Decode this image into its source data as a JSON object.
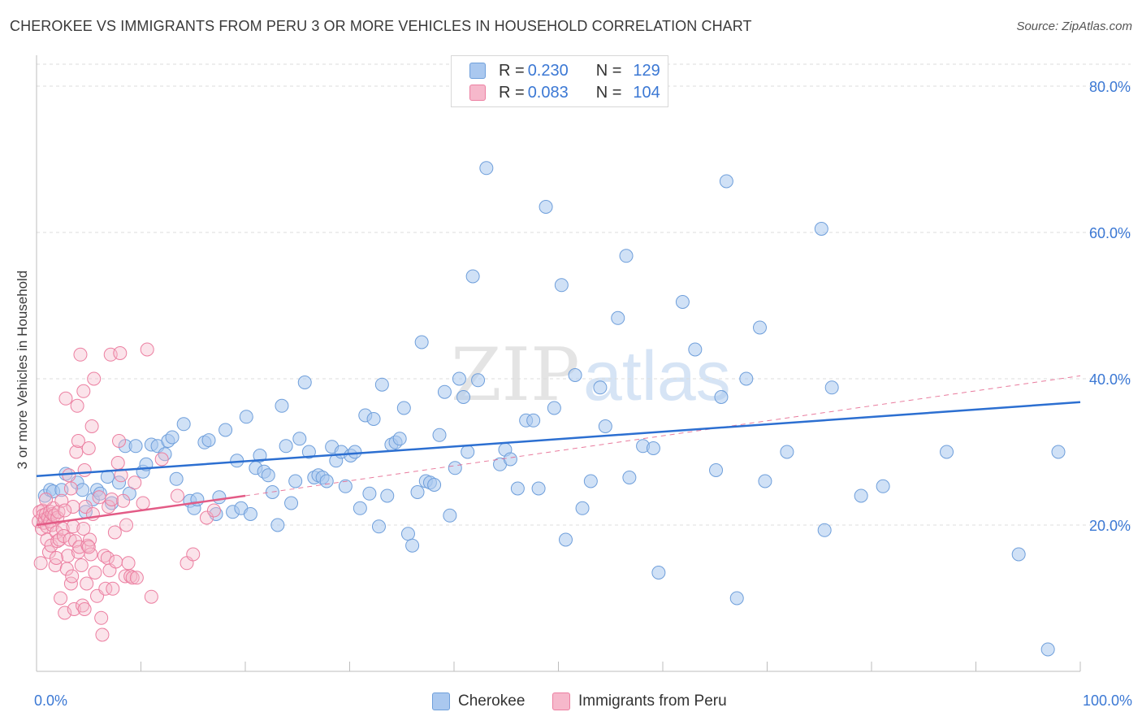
{
  "title": "CHEROKEE VS IMMIGRANTS FROM PERU 3 OR MORE VEHICLES IN HOUSEHOLD CORRELATION CHART",
  "source": "Source: ZipAtlas.com",
  "watermark": {
    "zip": "ZIP",
    "atlas": "atlas"
  },
  "legend_top": [
    {
      "r_label": "R = ",
      "r_value": "0.230",
      "n_label": "N = ",
      "n_value": "129"
    },
    {
      "r_label": "R = ",
      "r_value": "0.083",
      "n_label": "N = ",
      "n_value": "104"
    }
  ],
  "legend_bottom": [
    "Cherokee",
    "Immigrants from Peru"
  ],
  "colors": {
    "cherokee_fill": "#aac8ef",
    "cherokee_stroke": "#6f9fdb",
    "cherokee_line": "#2c6fd1",
    "peru_fill": "#f6b8cb",
    "peru_stroke": "#ec7fa1",
    "peru_line": "#e35b86",
    "tick_label": "#3b78d4",
    "grid": "#dcdcdc"
  },
  "chart_data": {
    "type": "scatter",
    "xlabel": "",
    "ylabel": "3 or more Vehicles in Household",
    "xlim": [
      0,
      100
    ],
    "ylim": [
      0,
      84
    ],
    "x_tick_labels": [
      "0.0%",
      "100.0%"
    ],
    "y_ticks": [
      20,
      40,
      60,
      80
    ],
    "y_tick_labels": [
      "20.0%",
      "40.0%",
      "60.0%",
      "80.0%"
    ],
    "grid": true,
    "legend_position": "top-center",
    "series": [
      {
        "name": "Cherokee",
        "r": 0.23,
        "n": 129,
        "trend": {
          "x": [
            0,
            100
          ],
          "y": [
            26.7,
            36.8
          ]
        },
        "points": [
          [
            0.8,
            24.0
          ],
          [
            1.3,
            24.8
          ],
          [
            1.6,
            24.6
          ],
          [
            2.4,
            24.8
          ],
          [
            2.8,
            27.0
          ],
          [
            3.9,
            25.8
          ],
          [
            4.4,
            24.8
          ],
          [
            4.7,
            21.8
          ],
          [
            5.4,
            23.5
          ],
          [
            5.8,
            24.8
          ],
          [
            6.1,
            24.3
          ],
          [
            6.8,
            26.6
          ],
          [
            7.2,
            23.0
          ],
          [
            7.9,
            25.8
          ],
          [
            8.5,
            30.8
          ],
          [
            8.9,
            24.3
          ],
          [
            9.5,
            30.8
          ],
          [
            10.2,
            27.3
          ],
          [
            10.5,
            28.3
          ],
          [
            11.0,
            31.0
          ],
          [
            11.6,
            30.8
          ],
          [
            12.3,
            29.7
          ],
          [
            12.6,
            31.5
          ],
          [
            13.0,
            32.0
          ],
          [
            13.4,
            26.3
          ],
          [
            14.1,
            33.8
          ],
          [
            14.7,
            23.3
          ],
          [
            15.1,
            22.3
          ],
          [
            15.4,
            23.5
          ],
          [
            16.1,
            31.3
          ],
          [
            16.5,
            31.6
          ],
          [
            17.2,
            21.5
          ],
          [
            17.5,
            23.8
          ],
          [
            18.1,
            33.0
          ],
          [
            18.8,
            21.8
          ],
          [
            19.2,
            28.8
          ],
          [
            19.6,
            22.3
          ],
          [
            20.1,
            34.8
          ],
          [
            20.5,
            21.5
          ],
          [
            21.0,
            27.8
          ],
          [
            21.4,
            29.5
          ],
          [
            21.8,
            27.3
          ],
          [
            22.2,
            26.8
          ],
          [
            22.6,
            24.5
          ],
          [
            23.1,
            20.0
          ],
          [
            23.5,
            36.3
          ],
          [
            23.9,
            30.8
          ],
          [
            24.4,
            23.0
          ],
          [
            24.8,
            26.0
          ],
          [
            25.2,
            31.8
          ],
          [
            25.7,
            39.5
          ],
          [
            26.1,
            30.0
          ],
          [
            26.6,
            26.5
          ],
          [
            27.0,
            26.8
          ],
          [
            27.4,
            26.5
          ],
          [
            27.8,
            26.0
          ],
          [
            28.3,
            30.7
          ],
          [
            28.7,
            28.8
          ],
          [
            29.2,
            30.0
          ],
          [
            29.6,
            25.3
          ],
          [
            30.1,
            29.5
          ],
          [
            30.5,
            30.0
          ],
          [
            31.0,
            22.3
          ],
          [
            31.5,
            35.0
          ],
          [
            31.9,
            24.3
          ],
          [
            32.3,
            34.5
          ],
          [
            32.8,
            19.8
          ],
          [
            33.1,
            39.2
          ],
          [
            33.6,
            24.0
          ],
          [
            34.0,
            31.0
          ],
          [
            34.4,
            31.3
          ],
          [
            34.8,
            31.8
          ],
          [
            35.2,
            36.0
          ],
          [
            35.6,
            18.8
          ],
          [
            36.0,
            17.2
          ],
          [
            36.5,
            24.5
          ],
          [
            36.9,
            45.0
          ],
          [
            37.3,
            26.0
          ],
          [
            37.7,
            25.8
          ],
          [
            38.1,
            25.5
          ],
          [
            38.6,
            32.3
          ],
          [
            39.1,
            38.2
          ],
          [
            39.6,
            21.3
          ],
          [
            40.1,
            27.8
          ],
          [
            40.5,
            40.0
          ],
          [
            40.9,
            37.5
          ],
          [
            41.3,
            30.0
          ],
          [
            41.8,
            54.0
          ],
          [
            42.3,
            39.8
          ],
          [
            43.1,
            68.8
          ],
          [
            44.4,
            28.3
          ],
          [
            44.9,
            30.3
          ],
          [
            45.4,
            29.0
          ],
          [
            46.1,
            25.0
          ],
          [
            46.9,
            34.3
          ],
          [
            47.6,
            34.3
          ],
          [
            48.1,
            25.0
          ],
          [
            48.8,
            63.5
          ],
          [
            49.6,
            36.0
          ],
          [
            50.3,
            52.8
          ],
          [
            50.7,
            18.0
          ],
          [
            51.6,
            40.5
          ],
          [
            52.3,
            22.3
          ],
          [
            53.1,
            26.0
          ],
          [
            54.0,
            38.8
          ],
          [
            54.5,
            33.5
          ],
          [
            55.7,
            48.3
          ],
          [
            56.5,
            56.8
          ],
          [
            56.8,
            26.5
          ],
          [
            58.1,
            30.8
          ],
          [
            59.1,
            30.5
          ],
          [
            59.6,
            13.5
          ],
          [
            61.9,
            50.5
          ],
          [
            63.1,
            44.0
          ],
          [
            65.1,
            27.5
          ],
          [
            65.6,
            37.5
          ],
          [
            66.1,
            67.0
          ],
          [
            67.1,
            10.0
          ],
          [
            68.0,
            40.0
          ],
          [
            69.3,
            47.0
          ],
          [
            69.8,
            26.0
          ],
          [
            71.9,
            30.0
          ],
          [
            75.2,
            60.5
          ],
          [
            75.5,
            19.3
          ],
          [
            76.2,
            38.8
          ],
          [
            79.0,
            24.0
          ],
          [
            81.1,
            25.3
          ],
          [
            87.2,
            30.0
          ],
          [
            94.1,
            16.0
          ],
          [
            96.9,
            3.0
          ],
          [
            97.9,
            30.0
          ]
        ]
      },
      {
        "name": "Immigrants from Peru",
        "r": 0.083,
        "n": 104,
        "trend": {
          "x": [
            0,
            20
          ],
          "y": [
            20.0,
            24.0
          ]
        },
        "trend_extension": {
          "x": [
            20,
            100
          ],
          "y": [
            24.0,
            40.4
          ]
        },
        "points": [
          [
            0.2,
            20.5
          ],
          [
            0.3,
            21.8
          ],
          [
            0.4,
            14.8
          ],
          [
            0.5,
            19.5
          ],
          [
            0.6,
            22.0
          ],
          [
            0.6,
            21.3
          ],
          [
            0.7,
            20.3
          ],
          [
            0.8,
            20.8
          ],
          [
            0.9,
            21.5
          ],
          [
            1.0,
            18.0
          ],
          [
            1.0,
            19.8
          ],
          [
            1.1,
            21.0
          ],
          [
            1.2,
            16.3
          ],
          [
            1.3,
            21.8
          ],
          [
            1.3,
            20.5
          ],
          [
            1.4,
            17.2
          ],
          [
            1.5,
            20.0
          ],
          [
            1.5,
            21.5
          ],
          [
            1.6,
            22.3
          ],
          [
            1.7,
            21.3
          ],
          [
            1.8,
            14.5
          ],
          [
            1.9,
            19.0
          ],
          [
            2.0,
            17.8
          ],
          [
            2.0,
            21.0
          ],
          [
            2.1,
            21.8
          ],
          [
            2.2,
            18.0
          ],
          [
            2.3,
            10.0
          ],
          [
            2.4,
            23.3
          ],
          [
            2.5,
            19.5
          ],
          [
            2.6,
            18.5
          ],
          [
            2.7,
            8.0
          ],
          [
            2.8,
            37.3
          ],
          [
            2.9,
            14.0
          ],
          [
            3.0,
            15.8
          ],
          [
            3.1,
            26.8
          ],
          [
            3.2,
            18.0
          ],
          [
            3.3,
            12.0
          ],
          [
            3.4,
            13.0
          ],
          [
            3.5,
            19.8
          ],
          [
            3.5,
            22.5
          ],
          [
            3.6,
            8.5
          ],
          [
            3.7,
            17.8
          ],
          [
            3.8,
            30.0
          ],
          [
            3.9,
            36.3
          ],
          [
            4.0,
            16.3
          ],
          [
            4.0,
            31.5
          ],
          [
            4.1,
            17.0
          ],
          [
            4.2,
            43.3
          ],
          [
            4.3,
            14.5
          ],
          [
            4.4,
            9.0
          ],
          [
            4.5,
            38.3
          ],
          [
            4.5,
            19.5
          ],
          [
            4.6,
            8.5
          ],
          [
            4.7,
            22.5
          ],
          [
            4.8,
            12.0
          ],
          [
            4.9,
            17.2
          ],
          [
            5.0,
            30.5
          ],
          [
            5.1,
            18.0
          ],
          [
            5.2,
            16.0
          ],
          [
            5.3,
            33.5
          ],
          [
            5.4,
            21.5
          ],
          [
            5.5,
            40.0
          ],
          [
            5.6,
            13.5
          ],
          [
            5.8,
            10.3
          ],
          [
            6.0,
            23.8
          ],
          [
            6.2,
            7.3
          ],
          [
            6.3,
            5.0
          ],
          [
            6.5,
            15.8
          ],
          [
            6.6,
            11.3
          ],
          [
            6.8,
            15.5
          ],
          [
            6.9,
            22.5
          ],
          [
            7.0,
            13.8
          ],
          [
            7.1,
            43.3
          ],
          [
            7.2,
            23.5
          ],
          [
            7.3,
            11.3
          ],
          [
            7.5,
            19.0
          ],
          [
            7.6,
            15.0
          ],
          [
            7.8,
            28.5
          ],
          [
            7.9,
            31.5
          ],
          [
            8.0,
            43.5
          ],
          [
            8.1,
            26.8
          ],
          [
            8.3,
            23.3
          ],
          [
            8.5,
            13.0
          ],
          [
            8.6,
            20.0
          ],
          [
            8.8,
            14.8
          ],
          [
            9.0,
            13.0
          ],
          [
            9.2,
            12.8
          ],
          [
            9.4,
            25.8
          ],
          [
            9.6,
            12.8
          ],
          [
            10.2,
            23.0
          ],
          [
            10.6,
            44.0
          ],
          [
            11.0,
            10.2
          ],
          [
            12.0,
            29.0
          ],
          [
            13.5,
            24.0
          ],
          [
            14.4,
            14.8
          ],
          [
            15.0,
            16.0
          ],
          [
            16.3,
            21.0
          ],
          [
            17.0,
            22.0
          ],
          [
            5.0,
            17.0
          ],
          [
            2.7,
            22.0
          ],
          [
            1.9,
            15.5
          ],
          [
            3.3,
            25.0
          ],
          [
            4.6,
            27.5
          ],
          [
            0.9,
            23.5
          ]
        ]
      }
    ]
  }
}
